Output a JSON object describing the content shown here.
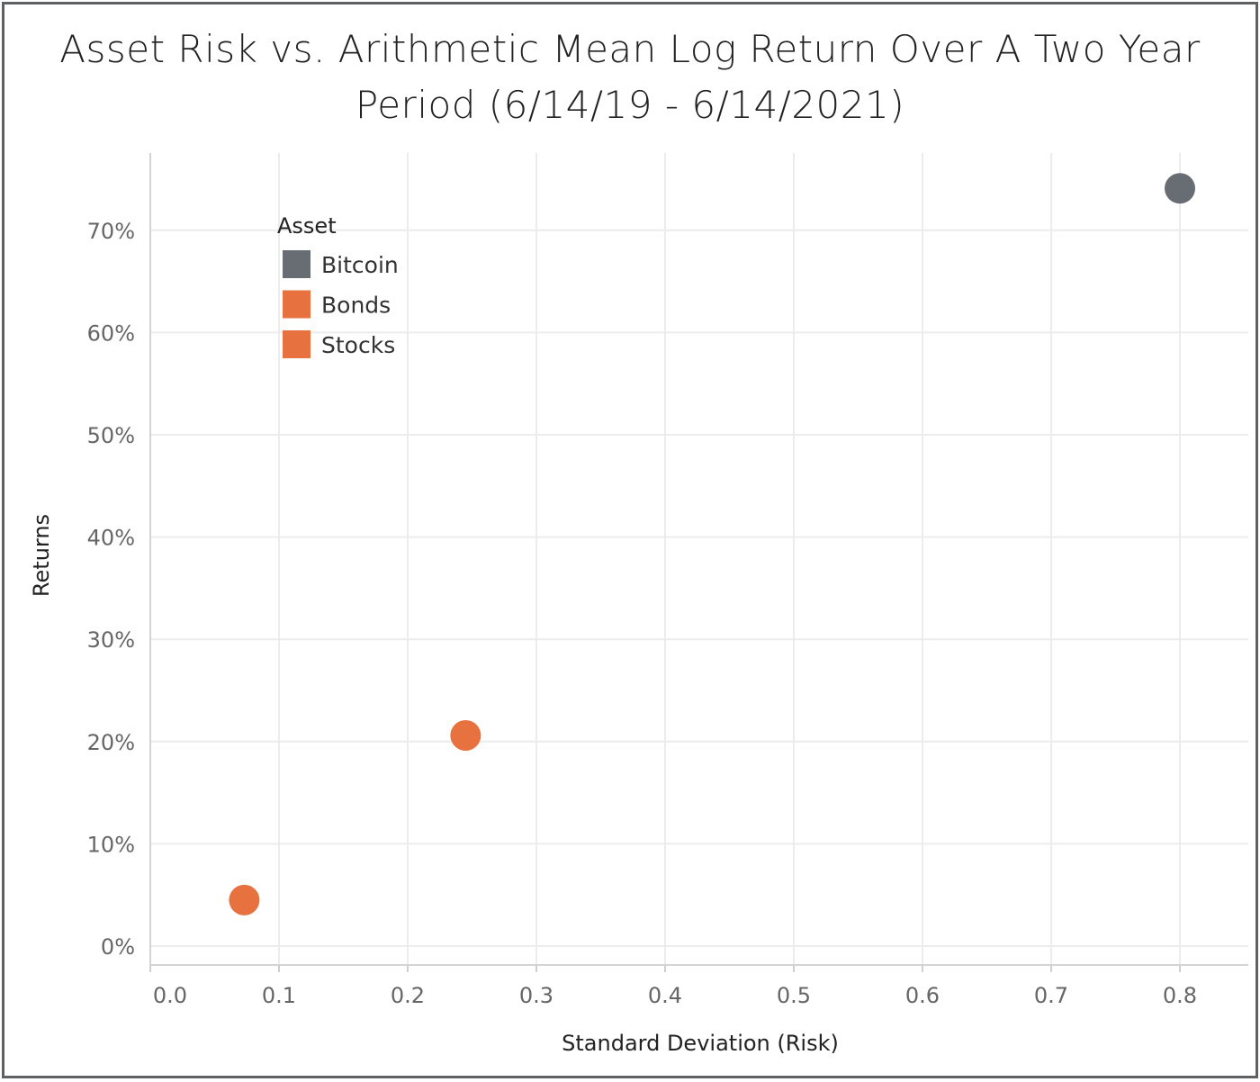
{
  "chart_data": {
    "type": "scatter",
    "title_line1": "Asset Risk vs. Arithmetic Mean Log Return Over A Two Year",
    "title_line2": "Period (6/14/19 - 6/14/2021)",
    "xlabel": "Standard Deviation (Risk)",
    "ylabel": "Returns",
    "xlim": [
      0.0,
      0.8
    ],
    "ylim": [
      0,
      0.7
    ],
    "x_ticks": [
      "0.0",
      "0.1",
      "0.2",
      "0.3",
      "0.4",
      "0.5",
      "0.6",
      "0.7",
      "0.8"
    ],
    "y_ticks": [
      "0%",
      "10%",
      "20%",
      "30%",
      "40%",
      "50%",
      "60%",
      "70%"
    ],
    "grid": true,
    "legend": {
      "title": "Asset",
      "placement": "top-left",
      "entries": [
        {
          "name": "Bitcoin",
          "color": "#686d74"
        },
        {
          "name": "Bonds",
          "color": "#e8723f"
        },
        {
          "name": "Stocks",
          "color": "#e8723f"
        }
      ]
    },
    "points": [
      {
        "series": "Bitcoin",
        "x": 0.8,
        "y": 0.741,
        "color": "#686d74"
      },
      {
        "series": "Stocks",
        "x": 0.245,
        "y": 0.206,
        "color": "#e8723f"
      },
      {
        "series": "Bonds",
        "x": 0.073,
        "y": 0.045,
        "color": "#e8723f"
      }
    ]
  }
}
